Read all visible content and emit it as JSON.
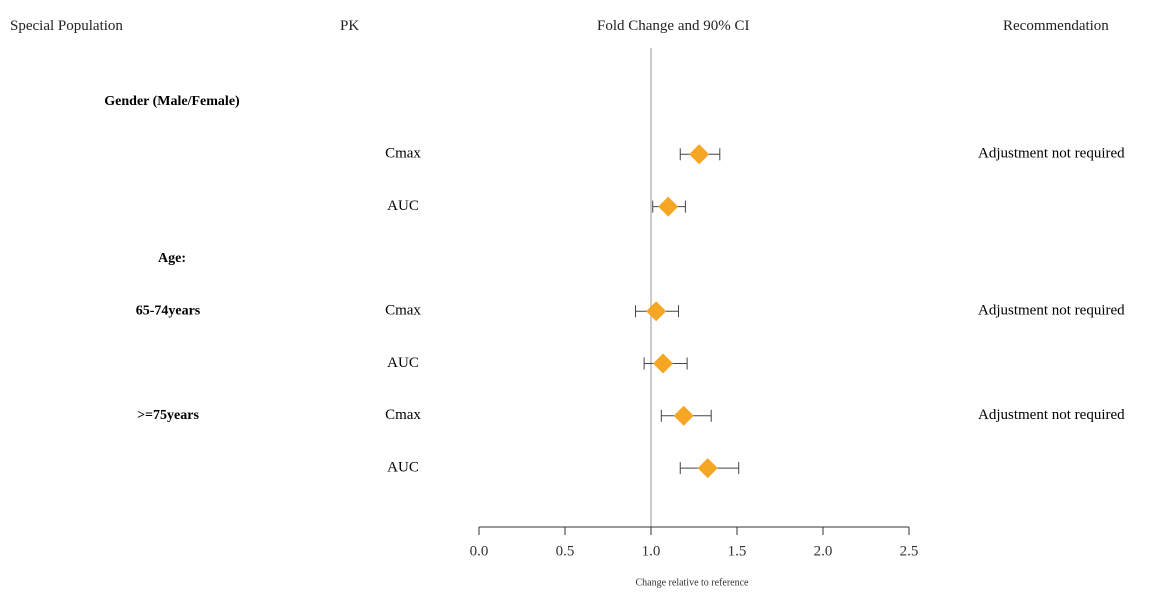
{
  "headers": {
    "population": "Special Population",
    "pk": "PK",
    "fold": "Fold Change and 90% CI",
    "recommendation": "Recommendation"
  },
  "chart_data": {
    "type": "scatter",
    "subtype": "forest",
    "xlabel": "Change relative to reference",
    "xlim": [
      0.0,
      2.5
    ],
    "xticks": [
      "0.0",
      "0.5",
      "1.0",
      "1.5",
      "2.0",
      "2.5"
    ],
    "reference_line": 1.0,
    "marker": "diamond",
    "marker_color": "#f5a623",
    "rows": [
      {
        "group": "Gender (Male/Female)",
        "pk": "",
        "est": null,
        "lo": null,
        "hi": null,
        "rec": ""
      },
      {
        "group": "",
        "pk": "Cmax",
        "est": 1.28,
        "lo": 1.17,
        "hi": 1.4,
        "rec": "Adjustment not required"
      },
      {
        "group": "",
        "pk": "AUC",
        "est": 1.1,
        "lo": 1.01,
        "hi": 1.2,
        "rec": ""
      },
      {
        "group": "Age:",
        "pk": "",
        "est": null,
        "lo": null,
        "hi": null,
        "rec": ""
      },
      {
        "group": "65-74years",
        "pk": "Cmax",
        "est": 1.03,
        "lo": 0.91,
        "hi": 1.16,
        "rec": "Adjustment not required"
      },
      {
        "group": "",
        "pk": "AUC",
        "est": 1.07,
        "lo": 0.96,
        "hi": 1.21,
        "rec": ""
      },
      {
        "group": ">=75years",
        "pk": "Cmax",
        "est": 1.19,
        "lo": 1.06,
        "hi": 1.35,
        "rec": "Adjustment not required"
      },
      {
        "group": "",
        "pk": "AUC",
        "est": 1.33,
        "lo": 1.17,
        "hi": 1.51,
        "rec": ""
      }
    ]
  }
}
